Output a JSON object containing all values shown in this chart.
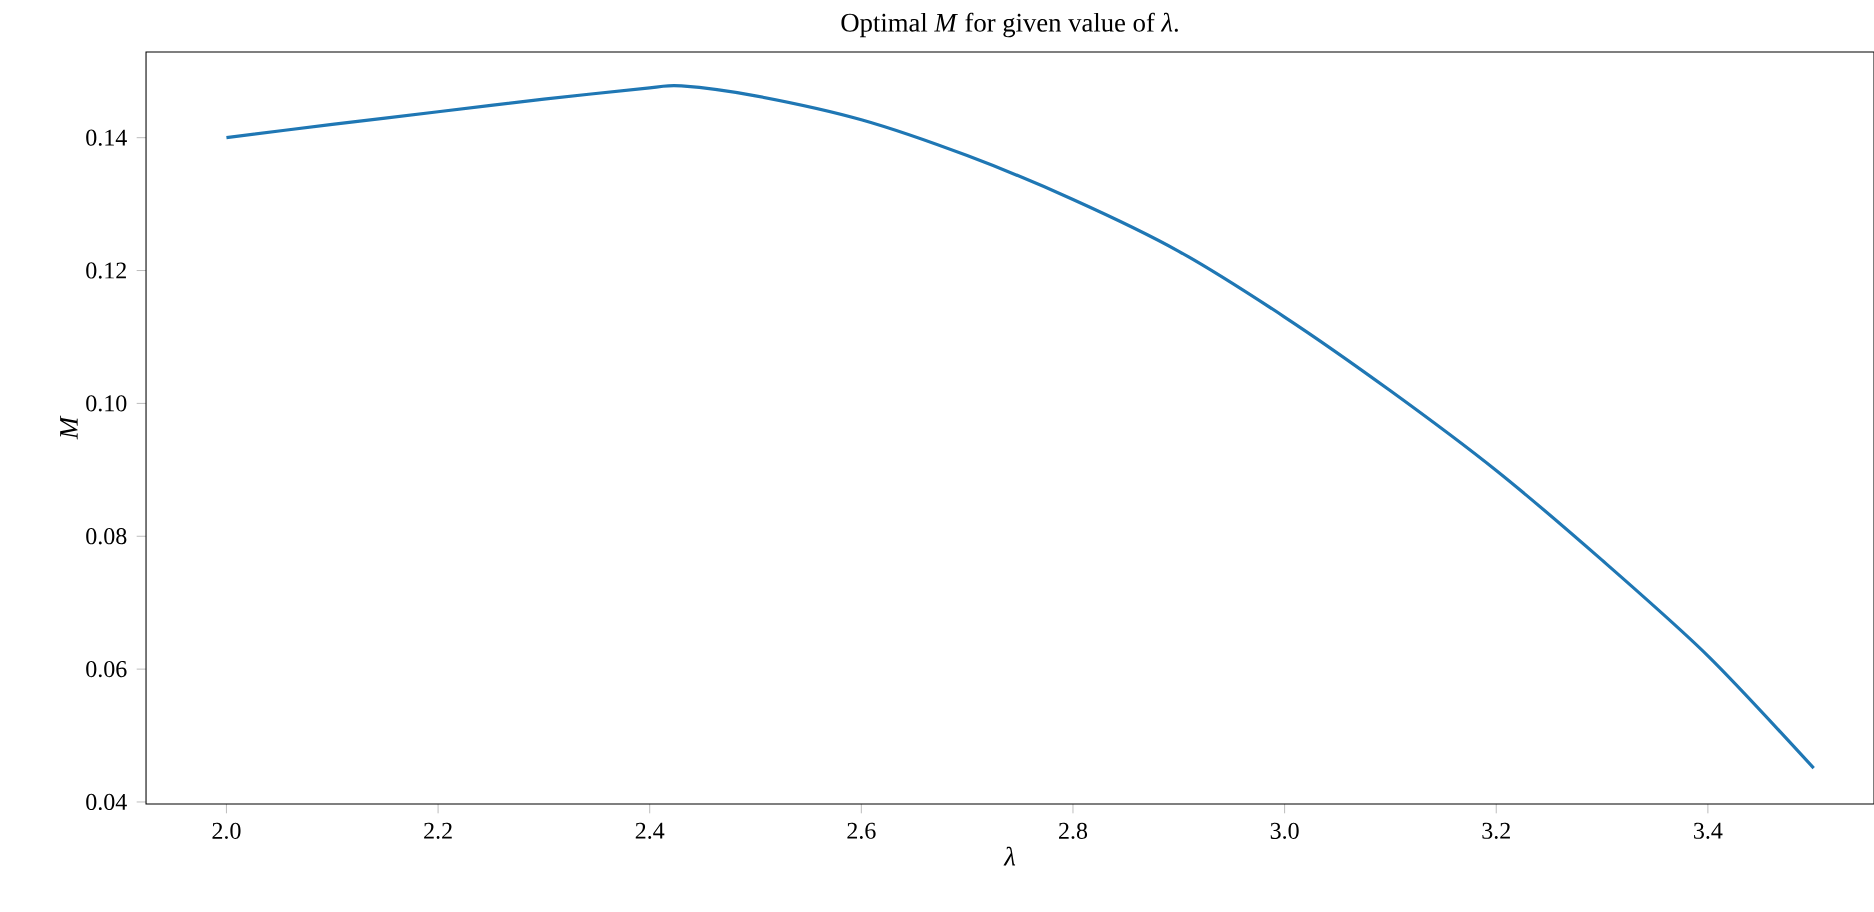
{
  "chart_data": {
    "type": "line",
    "title": "Optimal *M* for given value of *λ*.",
    "xlabel": "λ",
    "ylabel": "M",
    "x": [
      2.0,
      2.1,
      2.2,
      2.3,
      2.4,
      2.43,
      2.5,
      2.6,
      2.7,
      2.8,
      2.9,
      3.0,
      3.1,
      3.2,
      3.3,
      3.4,
      3.5
    ],
    "series": [
      {
        "color": "#1f77b4",
        "values": [
          0.14,
          0.142,
          0.1439,
          0.1458,
          0.1475,
          0.1478,
          0.1463,
          0.1427,
          0.1373,
          0.1307,
          0.1229,
          0.113,
          0.1019,
          0.0899,
          0.0764,
          0.062,
          0.0451
        ]
      }
    ],
    "xlim": [
      1.924,
      3.557
    ],
    "ylim": [
      0.0397,
      0.1529
    ],
    "xticks": [
      {
        "value": 2.0,
        "label": "2.0"
      },
      {
        "value": 2.2,
        "label": "2.2"
      },
      {
        "value": 2.4,
        "label": "2.4"
      },
      {
        "value": 2.6,
        "label": "2.6"
      },
      {
        "value": 2.8,
        "label": "2.8"
      },
      {
        "value": 3.0,
        "label": "3.0"
      },
      {
        "value": 3.2,
        "label": "3.2"
      },
      {
        "value": 3.4,
        "label": "3.4"
      }
    ],
    "yticks": [
      {
        "value": 0.04,
        "label": "0.04"
      },
      {
        "value": 0.06,
        "label": "0.06"
      },
      {
        "value": 0.08,
        "label": "0.08"
      },
      {
        "value": 0.1,
        "label": "0.10"
      },
      {
        "value": 0.12,
        "label": "0.12"
      },
      {
        "value": 0.14,
        "label": "0.14"
      }
    ],
    "marker": "none",
    "line_style": "solid"
  }
}
